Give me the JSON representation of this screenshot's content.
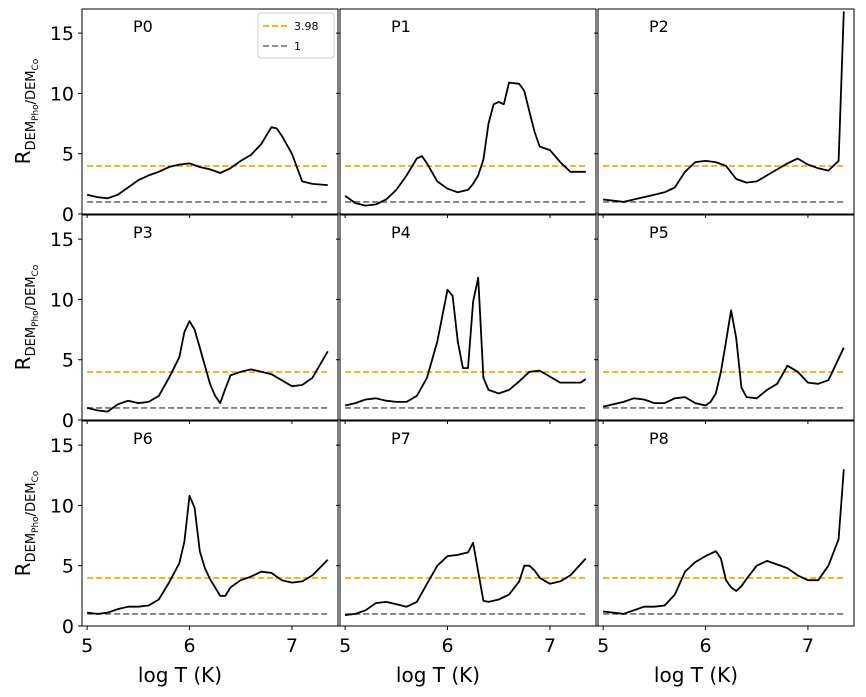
{
  "chart_data": {
    "type": "line",
    "layout": "3x3 grid of panels with shared axes",
    "xlabel": "log T (K)",
    "ylabel": "R",
    "ylabel_sub": "DEM",
    "ylabel_subsub_1": "Pho",
    "ylabel_sep": "/DEM",
    "ylabel_subsub_2": "Co",
    "xlim": [
      4.95,
      7.45
    ],
    "ylim": [
      0,
      17
    ],
    "xticks": [
      5,
      6,
      7
    ],
    "yticks": [
      0,
      5,
      10,
      15
    ],
    "colors": {
      "curve": "#000000",
      "ref_high": "#ffa500",
      "ref_low": "#808080",
      "frame": "#000000"
    },
    "reference_lines": [
      {
        "name": "3.98",
        "y": 3.98,
        "style": "dashed",
        "color": "#ffa500"
      },
      {
        "name": "1",
        "y": 1,
        "style": "dashed",
        "color": "#808080"
      }
    ],
    "legend": {
      "panel": "P0",
      "location": "top-right",
      "entries": [
        "3.98",
        "1"
      ]
    },
    "x": [
      5.0,
      5.1,
      5.2,
      5.3,
      5.4,
      5.5,
      5.6,
      5.7,
      5.8,
      5.9,
      6.0,
      6.1,
      6.2,
      6.3,
      6.4,
      6.5,
      6.6,
      6.7,
      6.8,
      6.9,
      7.0,
      7.1,
      7.2,
      7.3,
      7.35
    ],
    "panels": [
      {
        "label": "P0",
        "x": [
          5.0,
          5.1,
          5.2,
          5.3,
          5.4,
          5.5,
          5.6,
          5.7,
          5.8,
          5.9,
          6.0,
          6.1,
          6.2,
          6.3,
          6.35,
          6.4,
          6.5,
          6.6,
          6.7,
          6.8,
          6.85,
          6.9,
          7.0,
          7.1,
          7.2,
          7.35
        ],
        "values": [
          1.6,
          1.4,
          1.3,
          1.6,
          2.2,
          2.8,
          3.2,
          3.5,
          3.9,
          4.1,
          4.2,
          3.9,
          3.7,
          3.4,
          3.6,
          3.8,
          4.4,
          4.9,
          5.8,
          7.2,
          7.1,
          6.5,
          5.0,
          2.7,
          2.5,
          2.4
        ]
      },
      {
        "label": "P1",
        "x": [
          5.0,
          5.1,
          5.2,
          5.3,
          5.4,
          5.5,
          5.6,
          5.7,
          5.75,
          5.8,
          5.9,
          6.0,
          6.1,
          6.2,
          6.25,
          6.3,
          6.35,
          6.4,
          6.45,
          6.5,
          6.55,
          6.6,
          6.7,
          6.75,
          6.8,
          6.85,
          6.9,
          7.0,
          7.1,
          7.2,
          7.3,
          7.35
        ],
        "values": [
          1.5,
          0.9,
          0.7,
          0.8,
          1.2,
          2.0,
          3.2,
          4.6,
          4.8,
          4.2,
          2.7,
          2.1,
          1.8,
          2.0,
          2.5,
          3.2,
          4.5,
          7.5,
          9.1,
          9.3,
          9.1,
          10.9,
          10.8,
          10.2,
          8.5,
          6.8,
          5.6,
          5.3,
          4.3,
          3.5,
          3.5,
          3.5
        ]
      },
      {
        "label": "P2",
        "x": [
          5.0,
          5.1,
          5.2,
          5.3,
          5.4,
          5.5,
          5.6,
          5.7,
          5.8,
          5.9,
          6.0,
          6.1,
          6.2,
          6.3,
          6.4,
          6.5,
          6.6,
          6.7,
          6.8,
          6.9,
          7.0,
          7.1,
          7.2,
          7.3,
          7.35
        ],
        "values": [
          1.2,
          1.1,
          1.0,
          1.2,
          1.4,
          1.6,
          1.8,
          2.2,
          3.5,
          4.3,
          4.4,
          4.3,
          4.0,
          2.9,
          2.6,
          2.7,
          3.2,
          3.7,
          4.2,
          4.6,
          4.1,
          3.8,
          3.6,
          4.4,
          16.8
        ]
      },
      {
        "label": "P3",
        "x": [
          5.0,
          5.1,
          5.2,
          5.3,
          5.4,
          5.5,
          5.6,
          5.7,
          5.8,
          5.9,
          5.95,
          6.0,
          6.05,
          6.1,
          6.15,
          6.2,
          6.25,
          6.3,
          6.35,
          6.4,
          6.5,
          6.6,
          6.7,
          6.8,
          6.9,
          7.0,
          7.1,
          7.2,
          7.35
        ],
        "values": [
          1.0,
          0.8,
          0.7,
          1.3,
          1.6,
          1.4,
          1.5,
          2.0,
          3.5,
          5.2,
          7.3,
          8.2,
          7.5,
          6.0,
          4.5,
          3.0,
          2.0,
          1.4,
          2.6,
          3.7,
          4.0,
          4.2,
          4.0,
          3.8,
          3.3,
          2.8,
          2.9,
          3.5,
          5.7
        ]
      },
      {
        "label": "P4",
        "x": [
          5.0,
          5.1,
          5.2,
          5.3,
          5.4,
          5.5,
          5.6,
          5.7,
          5.8,
          5.9,
          6.0,
          6.05,
          6.1,
          6.15,
          6.2,
          6.25,
          6.3,
          6.35,
          6.4,
          6.5,
          6.6,
          6.7,
          6.8,
          6.9,
          7.0,
          7.1,
          7.2,
          7.3,
          7.35
        ],
        "values": [
          1.2,
          1.4,
          1.7,
          1.8,
          1.6,
          1.5,
          1.5,
          2.0,
          3.5,
          6.5,
          10.8,
          10.3,
          6.5,
          4.3,
          4.3,
          9.8,
          11.8,
          3.5,
          2.5,
          2.2,
          2.5,
          3.2,
          4.0,
          4.1,
          3.6,
          3.1,
          3.1,
          3.1,
          3.4
        ]
      },
      {
        "label": "P5",
        "x": [
          5.0,
          5.1,
          5.2,
          5.3,
          5.4,
          5.5,
          5.6,
          5.7,
          5.8,
          5.9,
          6.0,
          6.05,
          6.1,
          6.15,
          6.2,
          6.25,
          6.3,
          6.35,
          6.4,
          6.5,
          6.6,
          6.7,
          6.8,
          6.9,
          7.0,
          7.1,
          7.2,
          7.35
        ],
        "values": [
          1.1,
          1.3,
          1.5,
          1.8,
          1.7,
          1.4,
          1.4,
          1.8,
          1.9,
          1.4,
          1.2,
          1.5,
          2.2,
          4.0,
          6.5,
          9.1,
          6.8,
          2.7,
          1.9,
          1.8,
          2.5,
          3.0,
          4.5,
          4.0,
          3.1,
          3.0,
          3.3,
          6.0
        ]
      },
      {
        "label": "P6",
        "x": [
          5.0,
          5.1,
          5.2,
          5.3,
          5.4,
          5.5,
          5.6,
          5.7,
          5.8,
          5.9,
          5.95,
          6.0,
          6.05,
          6.1,
          6.15,
          6.2,
          6.25,
          6.3,
          6.35,
          6.4,
          6.5,
          6.6,
          6.7,
          6.8,
          6.9,
          7.0,
          7.1,
          7.2,
          7.35
        ],
        "values": [
          1.1,
          1.0,
          1.1,
          1.4,
          1.6,
          1.6,
          1.7,
          2.2,
          3.6,
          5.2,
          7.0,
          10.8,
          9.8,
          6.2,
          4.8,
          3.9,
          3.2,
          2.5,
          2.5,
          3.2,
          3.8,
          4.1,
          4.5,
          4.4,
          3.8,
          3.6,
          3.7,
          4.2,
          5.5
        ]
      },
      {
        "label": "P7",
        "x": [
          5.0,
          5.1,
          5.2,
          5.3,
          5.4,
          5.5,
          5.6,
          5.7,
          5.8,
          5.9,
          6.0,
          6.1,
          6.2,
          6.25,
          6.3,
          6.35,
          6.4,
          6.5,
          6.6,
          6.7,
          6.75,
          6.8,
          6.85,
          6.9,
          7.0,
          7.1,
          7.2,
          7.35
        ],
        "values": [
          0.9,
          1.0,
          1.3,
          1.9,
          2.0,
          1.8,
          1.6,
          2.0,
          3.5,
          5.0,
          5.8,
          5.9,
          6.1,
          6.9,
          4.5,
          2.1,
          2.0,
          2.2,
          2.6,
          3.7,
          5.0,
          5.0,
          4.6,
          4.0,
          3.5,
          3.7,
          4.2,
          5.6
        ]
      },
      {
        "label": "P8",
        "x": [
          5.0,
          5.1,
          5.2,
          5.3,
          5.4,
          5.5,
          5.6,
          5.7,
          5.8,
          5.9,
          6.0,
          6.1,
          6.15,
          6.2,
          6.25,
          6.3,
          6.35,
          6.4,
          6.5,
          6.6,
          6.7,
          6.8,
          6.9,
          7.0,
          7.1,
          7.2,
          7.3,
          7.35
        ],
        "values": [
          1.2,
          1.1,
          1.0,
          1.3,
          1.6,
          1.6,
          1.7,
          2.6,
          4.5,
          5.3,
          5.8,
          6.2,
          5.6,
          3.8,
          3.2,
          2.9,
          3.3,
          3.9,
          5.0,
          5.4,
          5.1,
          4.8,
          4.2,
          3.8,
          3.8,
          5.0,
          7.2,
          13.0
        ]
      }
    ]
  }
}
